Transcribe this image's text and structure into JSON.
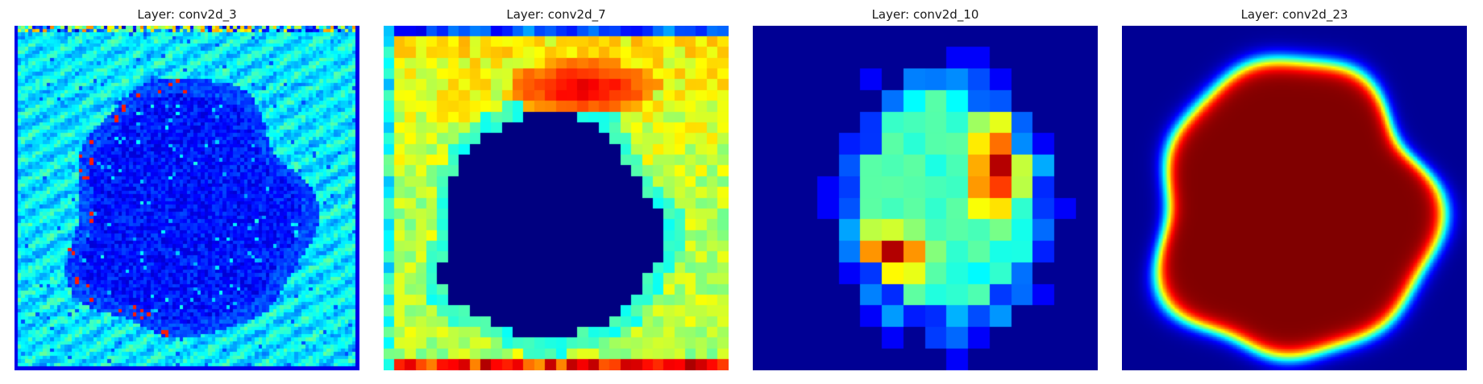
{
  "chart_data": [
    {
      "type": "heatmap",
      "title": "Layer: conv2d_3",
      "xlabel": "",
      "ylabel": "",
      "colormap": "jet",
      "axes": "off",
      "grid": false,
      "resolution": 96,
      "pattern": "Textured cyan/green background with a large dark-blue roughly circular blob, speckled interior, bright yellow/red dots along the left and upper edge of the blob and along the top border."
    },
    {
      "type": "heatmap",
      "title": "Layer: conv2d_7",
      "xlabel": "",
      "ylabel": "",
      "colormap": "jet",
      "axes": "off",
      "grid": false,
      "resolution": 32,
      "pattern": "Blocky green/yellow background, dark-blue rounded region in the center surrounded by a light-blue halo, red/orange band along the top of the region and along the bottom border."
    },
    {
      "type": "heatmap",
      "title": "Layer: conv2d_10",
      "xlabel": "",
      "ylabel": "",
      "colormap": "jet",
      "axes": "off",
      "grid": false,
      "resolution": 16,
      "pattern": "Dark-blue background with an oval patch of high activation; red/orange on the right side and lower-left, cyan/green in the middle."
    },
    {
      "type": "heatmap",
      "title": "Layer: conv2d_23",
      "xlabel": "",
      "ylabel": "",
      "colormap": "jet",
      "axes": "off",
      "grid": false,
      "resolution": 256,
      "pattern": "Smooth segmentation mask: dark-red irregular blob on dark-blue background with a thin yellow/cyan transition edge."
    }
  ]
}
